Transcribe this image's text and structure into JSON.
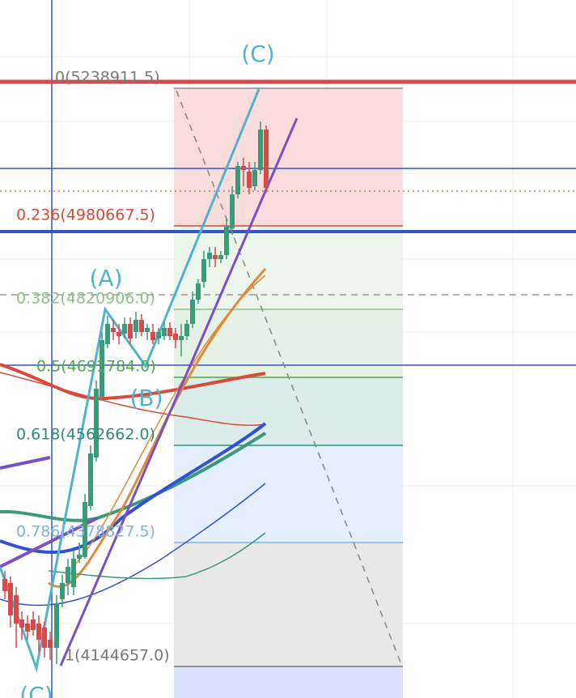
{
  "waves": {
    "top_c": "(C)",
    "a": "(A)",
    "b": "(B)",
    "bottom_c": "(C)"
  },
  "fib_levels": [
    {
      "label": "0(5238911.5)"
    },
    {
      "label": "0.236(4980667.5)"
    },
    {
      "label": "0.382(4820906.0)"
    },
    {
      "label": "0.5(4691784.0)"
    },
    {
      "label": "0.618(4562662.0)"
    },
    {
      "label": "0.786(4378827.5)"
    },
    {
      "label": "1(4144657.0)"
    }
  ]
}
